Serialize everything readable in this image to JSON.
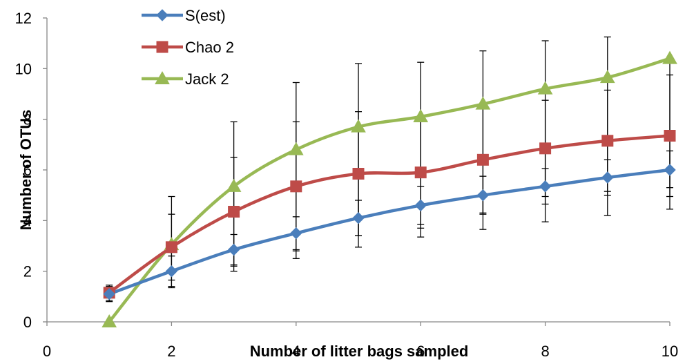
{
  "chart_data": {
    "type": "line",
    "title": "",
    "xlabel": "Number of litter bags sampled",
    "ylabel": "Number of OTUs",
    "xlim": [
      0,
      10
    ],
    "ylim": [
      0,
      12
    ],
    "xticks": [
      "0",
      "2",
      "4",
      "6",
      "8",
      "10"
    ],
    "yticks": [
      "0",
      "2",
      "4",
      "6",
      "8",
      "10",
      "12"
    ],
    "grid": false,
    "legend_position": "top-left",
    "x": [
      1,
      2,
      3,
      4,
      5,
      6,
      7,
      8,
      9,
      10
    ],
    "series": [
      {
        "name": "S(est)",
        "color": "#4a7ebb",
        "marker": "diamond",
        "values": [
          1.1,
          2.0,
          2.85,
          3.5,
          4.1,
          4.6,
          5.0,
          5.35,
          5.7,
          6.0
        ],
        "error_high": [
          1.4,
          2.6,
          3.45,
          4.15,
          4.8,
          5.35,
          5.75,
          6.05,
          6.4,
          6.75
        ],
        "error_low": [
          0.8,
          1.4,
          2.25,
          2.85,
          3.4,
          3.85,
          4.3,
          4.65,
          5.0,
          5.3
        ]
      },
      {
        "name": "Chao 2",
        "color": "#be4b48",
        "marker": "square",
        "values": [
          1.15,
          2.95,
          4.35,
          5.35,
          5.85,
          5.9,
          6.4,
          6.85,
          7.15,
          7.35
        ],
        "error_high": [
          1.45,
          4.25,
          6.5,
          7.9,
          8.3,
          8.1,
          8.55,
          8.75,
          9.15,
          9.75
        ],
        "error_low": [
          0.85,
          1.65,
          2.2,
          2.8,
          3.4,
          3.7,
          4.25,
          4.95,
          5.15,
          4.95
        ]
      },
      {
        "name": "Jack 2",
        "color": "#98b954",
        "marker": "triangle",
        "values": [
          0.0,
          3.05,
          5.35,
          6.8,
          7.7,
          8.1,
          8.6,
          9.2,
          9.65,
          10.4
        ],
        "error_high": [
          0.0,
          4.95,
          7.9,
          9.45,
          10.2,
          10.25,
          10.7,
          11.1,
          11.25,
          10.4
        ],
        "error_low": [
          0.0,
          1.35,
          2.0,
          2.5,
          2.95,
          3.35,
          3.65,
          3.95,
          4.2,
          4.45
        ]
      }
    ]
  }
}
